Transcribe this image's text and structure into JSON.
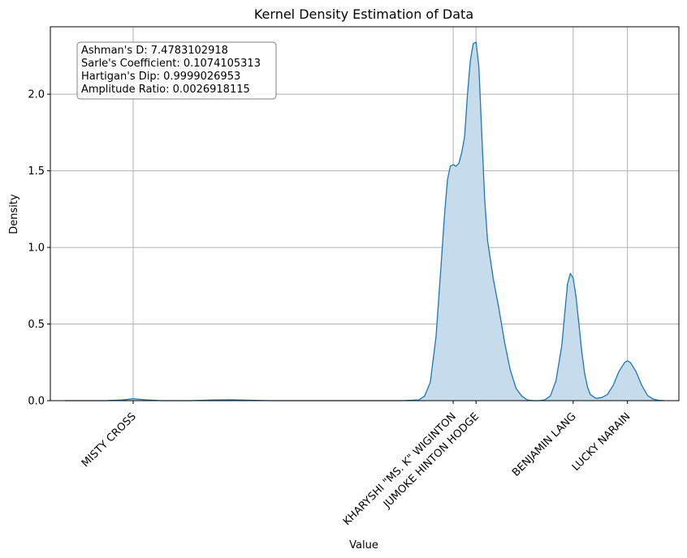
{
  "chart_data": {
    "type": "area",
    "title": "Kernel Density Estimation of Data",
    "xlabel": "Value",
    "ylabel": "Density",
    "ylim": [
      0,
      2.44
    ],
    "grid": true,
    "y_ticks": [
      {
        "value": 0.0,
        "label": "0.0"
      },
      {
        "value": 0.5,
        "label": "0.5"
      },
      {
        "value": 1.0,
        "label": "1.0"
      },
      {
        "value": 1.5,
        "label": "1.5"
      },
      {
        "value": 2.0,
        "label": "2.0"
      }
    ],
    "x_ticks": [
      {
        "value": 1.0,
        "label": "MISTY CROSS"
      },
      {
        "value": 6.6,
        "label": "KHARYSHI \"MS. K\" WIGINTON"
      },
      {
        "value": 7.0,
        "label": "JUMOKE HINTON HODGE"
      },
      {
        "value": 8.7,
        "label": "BENJAMIN LANG"
      },
      {
        "value": 9.65,
        "label": "LUCKY NARAIN"
      }
    ],
    "xlim": [
      -0.45,
      10.55
    ],
    "series": [
      {
        "color": "#1f77b4",
        "fill": "#c6dcec",
        "x": [
          -0.2,
          0.5,
          0.8,
          1.0,
          1.2,
          1.5,
          2.0,
          2.4,
          2.7,
          3.0,
          3.4,
          5.7,
          6.0,
          6.1,
          6.2,
          6.3,
          6.4,
          6.45,
          6.5,
          6.55,
          6.6,
          6.65,
          6.7,
          6.75,
          6.8,
          6.85,
          6.9,
          6.95,
          7.0,
          7.05,
          7.1,
          7.15,
          7.2,
          7.3,
          7.4,
          7.5,
          7.6,
          7.7,
          7.8,
          7.9,
          8.0,
          8.1,
          8.2,
          8.3,
          8.4,
          8.5,
          8.55,
          8.6,
          8.65,
          8.7,
          8.75,
          8.8,
          8.85,
          8.9,
          8.95,
          9.0,
          9.1,
          9.2,
          9.3,
          9.4,
          9.5,
          9.6,
          9.65,
          9.7,
          9.8,
          9.9,
          10.0,
          10.1,
          10.2,
          10.3
        ],
        "y": [
          0.0,
          0.0,
          0.004,
          0.012,
          0.006,
          0.0,
          0.0,
          0.004,
          0.006,
          0.003,
          0.0,
          0.0,
          0.005,
          0.03,
          0.12,
          0.42,
          0.95,
          1.22,
          1.44,
          1.53,
          1.54,
          1.53,
          1.55,
          1.62,
          1.72,
          2.0,
          2.22,
          2.33,
          2.34,
          2.18,
          1.75,
          1.32,
          1.05,
          0.8,
          0.6,
          0.38,
          0.2,
          0.08,
          0.03,
          0.005,
          0.0,
          0.0,
          0.005,
          0.03,
          0.13,
          0.36,
          0.56,
          0.76,
          0.83,
          0.8,
          0.68,
          0.5,
          0.32,
          0.18,
          0.09,
          0.04,
          0.015,
          0.02,
          0.04,
          0.1,
          0.19,
          0.25,
          0.26,
          0.25,
          0.19,
          0.1,
          0.035,
          0.01,
          0.002,
          0.0
        ]
      }
    ]
  },
  "stats_box": {
    "lines": [
      "Ashman's D: 7.4783102918",
      "Sarle's Coefficient: 0.1074105313",
      "Hartigan's Dip: 0.9999026953",
      "Amplitude Ratio: 0.0026918115"
    ]
  }
}
